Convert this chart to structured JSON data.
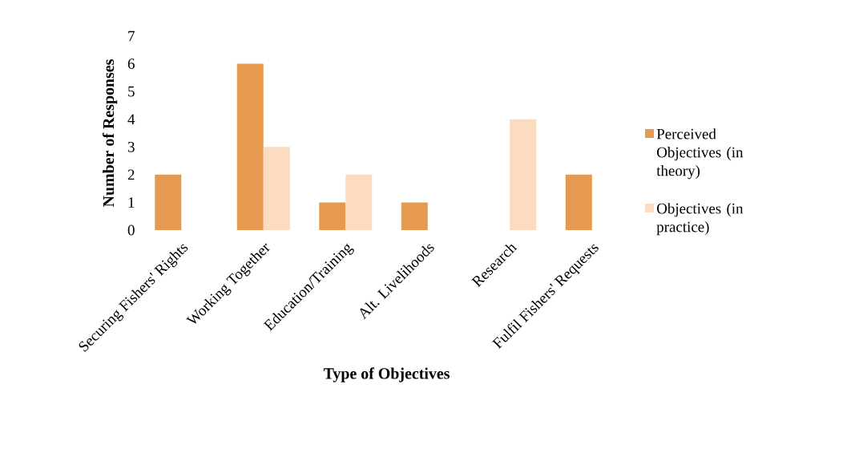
{
  "chart_data": {
    "type": "bar",
    "xlabel": "Type of Objectives",
    "ylabel": "Number of Responses",
    "categories": [
      "Securing Fishers' Rights",
      "Working Together",
      "Education/Training",
      "Alt. Livelihoods",
      "Research",
      "Fulfil Fishers' Requests"
    ],
    "series": [
      {
        "name": "Perceived Objectives (in theory)",
        "color": "#e59a50",
        "values": [
          2,
          6,
          1,
          1,
          0,
          2
        ]
      },
      {
        "name": "Objectives (in practice)",
        "color": "#fbdcc0",
        "values": [
          0,
          3,
          2,
          0,
          4,
          0
        ]
      }
    ],
    "ylim": [
      0,
      7
    ],
    "yticks": [
      0,
      1,
      2,
      3,
      4,
      5,
      6,
      7
    ],
    "legend": "right"
  }
}
